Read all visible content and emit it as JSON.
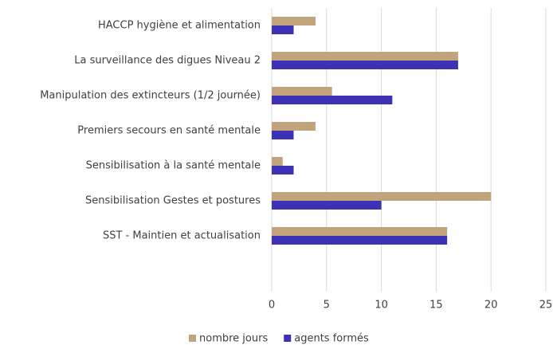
{
  "chart_data": {
    "type": "bar",
    "orientation": "horizontal",
    "categories": [
      "HACCP hygiène et alimentation",
      "La surveillance des digues Niveau 2",
      "Manipulation des extincteurs (1/2 journée)",
      "Premiers secours en santé mentale",
      "Sensibilisation à la santé mentale",
      "Sensibilisation Gestes et postures",
      "SST - Maintien et actualisation",
      null
    ],
    "series": [
      {
        "name": "nombre jours",
        "color": "#c1a37c",
        "values": [
          4,
          17,
          5.5,
          4,
          1,
          20,
          16,
          null
        ]
      },
      {
        "name": "agents formés",
        "color": "#3d32b5",
        "values": [
          2,
          17,
          11,
          2,
          2,
          10,
          16,
          null
        ]
      }
    ],
    "xlim": [
      0,
      25
    ],
    "xticks": [
      0,
      5,
      10,
      15,
      20,
      25
    ],
    "grid": true,
    "legend": "bottom"
  }
}
